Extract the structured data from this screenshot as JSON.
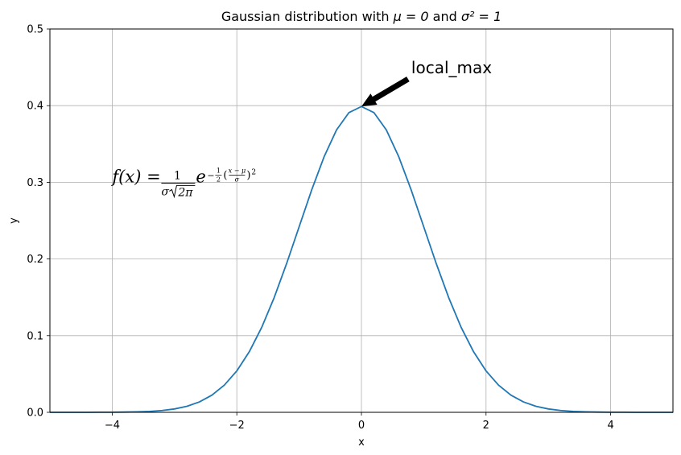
{
  "chart_data": {
    "type": "line",
    "title_prefix": "Gaussian distribution with ",
    "title_mu": "μ = 0",
    "title_and": " and ",
    "title_sigma": "σ² = 1",
    "xlabel": "x",
    "ylabel": "y",
    "xlim": [
      -5,
      5
    ],
    "ylim": [
      0,
      0.5
    ],
    "xticks": [
      -4,
      -2,
      0,
      2,
      4
    ],
    "xtick_labels": [
      "−4",
      "−2",
      "0",
      "2",
      "4"
    ],
    "yticks": [
      0.0,
      0.1,
      0.2,
      0.3,
      0.4,
      0.5
    ],
    "ytick_labels": [
      "0.0",
      "0.1",
      "0.2",
      "0.3",
      "0.4",
      "0.5"
    ],
    "grid": true,
    "series": [
      {
        "color": "#1f77b4",
        "x": [
          -5,
          -4.8,
          -4.6,
          -4.4,
          -4.2,
          -4,
          -3.8,
          -3.6,
          -3.4,
          -3.2,
          -3,
          -2.8,
          -2.6,
          -2.4,
          -2.2,
          -2,
          -1.8,
          -1.6,
          -1.4,
          -1.2,
          -1,
          -0.8,
          -0.6,
          -0.4,
          -0.2,
          0,
          0.2,
          0.4,
          0.6,
          0.8,
          1,
          1.2,
          1.4,
          1.6,
          1.8,
          2,
          2.2,
          2.4,
          2.6,
          2.8,
          3,
          3.2,
          3.4,
          3.6,
          3.8,
          4,
          4.2,
          4.4,
          4.6,
          4.8,
          5
        ],
        "y": [
          0.0,
          0.0,
          0.0,
          0.0,
          0.0001,
          0.0001,
          0.0003,
          0.0006,
          0.0012,
          0.0024,
          0.0044,
          0.0079,
          0.0136,
          0.0224,
          0.0355,
          0.054,
          0.079,
          0.1109,
          0.1497,
          0.1942,
          0.242,
          0.2897,
          0.3332,
          0.3683,
          0.391,
          0.3989,
          0.391,
          0.3683,
          0.3332,
          0.2897,
          0.242,
          0.1942,
          0.1497,
          0.1109,
          0.079,
          0.054,
          0.0355,
          0.0224,
          0.0136,
          0.0079,
          0.0044,
          0.0024,
          0.0012,
          0.0006,
          0.0003,
          0.0001,
          0.0001,
          0.0,
          0.0,
          0.0,
          0.0
        ]
      }
    ],
    "annotation": {
      "text": "local_max",
      "point": [
        0,
        0.3989
      ],
      "text_pos": [
        0.8,
        0.44
      ]
    },
    "formula": {
      "lhs": "f(x) =",
      "frac_num": "1",
      "frac_den_sigma": "σ",
      "frac_den_sqrt": "2π",
      "base": "e",
      "exp_sign": "−",
      "exp_half_num": "1",
      "exp_half_den": "2",
      "exp_inner_num": "x − μ",
      "exp_inner_den": "σ",
      "exp_power": "2",
      "anchor": [
        -4,
        0.3
      ]
    }
  }
}
